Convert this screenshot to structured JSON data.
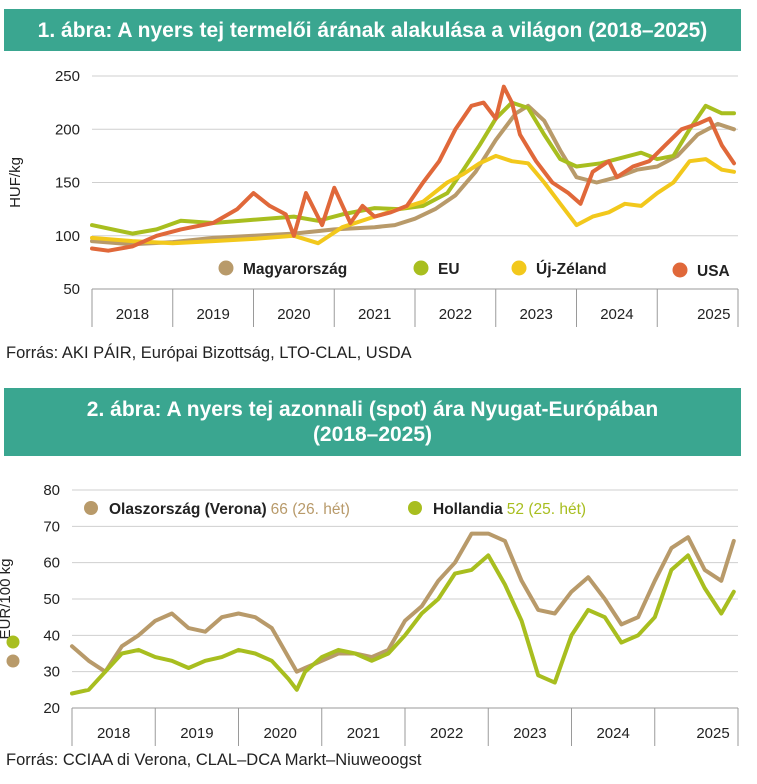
{
  "chart1": {
    "title": "1. ábra: A nyers tej termelői árának alakulása a világon (2018–2025)",
    "source": "Forrás: AKI PÁIR, Európai Bizottság, LTO-CLAL, USDA",
    "chart_data": {
      "type": "line",
      "title": "1. ábra: A nyers tej termelői árának alakulása a világon (2018–2025)",
      "ylabel": "HUF/kg",
      "xlabel": "",
      "ylim": [
        50,
        250
      ],
      "yticks": [
        "50",
        "100",
        "150",
        "200",
        "250"
      ],
      "xlim": [
        2017.5,
        2025.5
      ],
      "year_labels": [
        "2018",
        "2019",
        "2020",
        "2021",
        "2022",
        "2023",
        "2024",
        "2025"
      ],
      "series": [
        {
          "name": "Magyarország",
          "color": "#b89a6a",
          "x": [
            2017.5,
            2018.0,
            2018.5,
            2019.0,
            2019.5,
            2020.0,
            2020.5,
            2021.0,
            2021.25,
            2021.5,
            2021.75,
            2022.0,
            2022.25,
            2022.5,
            2022.75,
            2022.9,
            2023.1,
            2023.3,
            2023.5,
            2023.75,
            2024.0,
            2024.25,
            2024.5,
            2024.75,
            2025.0,
            2025.25,
            2025.45
          ],
          "y": [
            95,
            92,
            94,
            98,
            100,
            102,
            106,
            108,
            110,
            116,
            125,
            138,
            160,
            190,
            215,
            222,
            208,
            180,
            155,
            150,
            155,
            162,
            165,
            175,
            195,
            205,
            200
          ]
        },
        {
          "name": "EU",
          "color": "#a8be1f",
          "x": [
            2017.5,
            2018.0,
            2018.3,
            2018.6,
            2019.0,
            2019.5,
            2020.0,
            2020.3,
            2020.6,
            2021.0,
            2021.3,
            2021.6,
            2021.9,
            2022.1,
            2022.3,
            2022.5,
            2022.7,
            2022.9,
            2023.1,
            2023.3,
            2023.5,
            2023.8,
            2024.0,
            2024.3,
            2024.5,
            2024.7,
            2024.9,
            2025.1,
            2025.3,
            2025.45
          ],
          "y": [
            110,
            102,
            106,
            114,
            112,
            115,
            118,
            114,
            120,
            126,
            125,
            128,
            140,
            162,
            185,
            210,
            225,
            220,
            195,
            172,
            165,
            168,
            172,
            178,
            172,
            175,
            200,
            222,
            215,
            215
          ]
        },
        {
          "name": "Új-Zéland",
          "color": "#f2c81c",
          "x": [
            2017.5,
            2018.0,
            2018.5,
            2019.0,
            2019.5,
            2020.0,
            2020.3,
            2020.6,
            2021.0,
            2021.3,
            2021.6,
            2021.9,
            2022.1,
            2022.3,
            2022.5,
            2022.7,
            2022.9,
            2023.1,
            2023.3,
            2023.5,
            2023.7,
            2023.9,
            2024.1,
            2024.3,
            2024.5,
            2024.7,
            2024.9,
            2025.1,
            2025.3,
            2025.45
          ],
          "y": [
            98,
            95,
            93,
            95,
            97,
            100,
            93,
            108,
            118,
            125,
            132,
            150,
            158,
            168,
            175,
            170,
            168,
            150,
            130,
            110,
            118,
            122,
            130,
            128,
            140,
            150,
            170,
            172,
            162,
            160
          ]
        },
        {
          "name": "USA",
          "color": "#e0683a",
          "x": [
            2017.5,
            2017.7,
            2018.0,
            2018.3,
            2018.6,
            2019.0,
            2019.3,
            2019.5,
            2019.7,
            2019.9,
            2020.0,
            2020.15,
            2020.35,
            2020.5,
            2020.7,
            2020.85,
            2021.0,
            2021.2,
            2021.4,
            2021.6,
            2021.8,
            2022.0,
            2022.2,
            2022.35,
            2022.5,
            2022.6,
            2022.7,
            2022.8,
            2023.0,
            2023.2,
            2023.4,
            2023.55,
            2023.7,
            2023.9,
            2024.0,
            2024.2,
            2024.4,
            2024.6,
            2024.8,
            2025.0,
            2025.15,
            2025.3,
            2025.45
          ],
          "y": [
            88,
            86,
            90,
            100,
            106,
            112,
            125,
            140,
            128,
            120,
            100,
            140,
            110,
            145,
            112,
            128,
            118,
            122,
            128,
            150,
            170,
            200,
            222,
            225,
            210,
            240,
            225,
            195,
            170,
            150,
            140,
            130,
            160,
            170,
            155,
            165,
            170,
            185,
            200,
            205,
            210,
            185,
            168
          ]
        }
      ]
    }
  },
  "chart2": {
    "title_line1": "2. ábra: A nyers tej azonnali (spot) ára Nyugat-Európában",
    "title_line2": "(2018–2025)",
    "source": "Forrás: CCIAA di Verona, CLAL–DCA Markt–Niuweoogst",
    "chart_data": {
      "type": "line",
      "title": "2. ábra: A nyers tej azonnali (spot) ára Nyugat-Európában (2018–2025)",
      "ylabel": "EUR/100 kg",
      "xlabel": "",
      "ylim": [
        20,
        80
      ],
      "yticks": [
        "20",
        "30",
        "40",
        "50",
        "60",
        "70",
        "80"
      ],
      "xlim": [
        2017.5,
        2025.5
      ],
      "year_labels": [
        "2018",
        "2019",
        "2020",
        "2021",
        "2022",
        "2023",
        "2024",
        "2025"
      ],
      "series": [
        {
          "name": "Olaszország (Verona)",
          "latest": "66 (26. hét)",
          "color": "#b89a6a",
          "x": [
            2017.5,
            2017.7,
            2017.9,
            2018.1,
            2018.3,
            2018.5,
            2018.7,
            2018.9,
            2019.1,
            2019.3,
            2019.5,
            2019.7,
            2019.9,
            2020.1,
            2020.2,
            2020.3,
            2020.5,
            2020.7,
            2020.9,
            2021.1,
            2021.3,
            2021.5,
            2021.7,
            2021.9,
            2022.1,
            2022.3,
            2022.5,
            2022.7,
            2022.9,
            2023.1,
            2023.3,
            2023.5,
            2023.7,
            2023.9,
            2024.1,
            2024.3,
            2024.5,
            2024.7,
            2024.9,
            2025.1,
            2025.3,
            2025.45
          ],
          "y": [
            37,
            33,
            30,
            37,
            40,
            44,
            46,
            42,
            41,
            45,
            46,
            45,
            42,
            34,
            30,
            31,
            33,
            35,
            35,
            34,
            36,
            44,
            48,
            55,
            60,
            68,
            68,
            66,
            55,
            47,
            46,
            52,
            56,
            50,
            43,
            45,
            55,
            64,
            67,
            58,
            55,
            66
          ]
        },
        {
          "name": "Hollandia",
          "latest": "52 (25. hét)",
          "color": "#a8be1f",
          "x": [
            2017.5,
            2017.7,
            2017.9,
            2018.1,
            2018.3,
            2018.5,
            2018.7,
            2018.9,
            2019.1,
            2019.3,
            2019.5,
            2019.7,
            2019.9,
            2020.1,
            2020.2,
            2020.3,
            2020.5,
            2020.7,
            2020.9,
            2021.1,
            2021.3,
            2021.5,
            2021.7,
            2021.9,
            2022.1,
            2022.3,
            2022.5,
            2022.7,
            2022.9,
            2023.1,
            2023.3,
            2023.5,
            2023.7,
            2023.9,
            2024.1,
            2024.3,
            2024.5,
            2024.7,
            2024.9,
            2025.1,
            2025.3,
            2025.45
          ],
          "y": [
            24,
            25,
            30,
            35,
            36,
            34,
            33,
            31,
            33,
            34,
            36,
            35,
            33,
            28,
            25,
            30,
            34,
            36,
            35,
            33,
            35,
            40,
            46,
            50,
            57,
            58,
            62,
            54,
            44,
            29,
            27,
            40,
            47,
            45,
            38,
            40,
            45,
            58,
            62,
            53,
            46,
            52
          ]
        }
      ]
    }
  }
}
